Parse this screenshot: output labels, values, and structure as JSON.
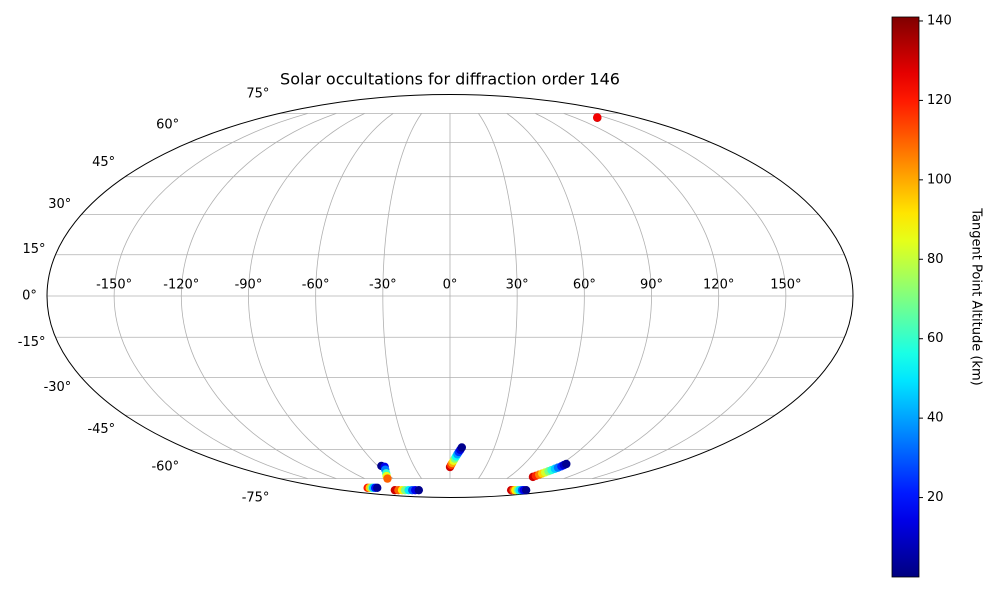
{
  "chart_data": {
    "type": "scatter",
    "projection": "mollweide",
    "title": "Solar occultations for diffraction order 146",
    "x": [
      0,
      0.9,
      1.8,
      2.7,
      3.6,
      4.4,
      5.3,
      6.2,
      7.1,
      8,
      84,
      85,
      86,
      87,
      88,
      89,
      90,
      91,
      92,
      93,
      93.5,
      94,
      102,
      106,
      109,
      113,
      116,
      120,
      123,
      127,
      -92,
      -86,
      -80,
      -75,
      -69,
      -63,
      -58,
      -52,
      -120,
      -117,
      -114,
      -112,
      -109,
      -106,
      -57,
      -55,
      -57,
      -60,
      -63,
      -66,
      141,
      142
    ],
    "y": [
      -68.6,
      -67.5,
      -66.5,
      -65.4,
      -64.3,
      -63.3,
      -62.2,
      -61.1,
      -60.1,
      -59,
      -74,
      -73.4,
      -72.7,
      -72.1,
      -71.5,
      -70.8,
      -70.2,
      -69.5,
      -68.9,
      -68.2,
      -67.6,
      -67,
      -82.6,
      -82.6,
      -82.6,
      -82.6,
      -82.6,
      -82.6,
      -82.6,
      -82.6,
      -82.6,
      -82.6,
      -82.6,
      -82.6,
      -82.6,
      -82.6,
      -82.6,
      -82.6,
      -80.9,
      -80.9,
      -80.9,
      -80.9,
      -80.9,
      -80.9,
      -68,
      -68.5,
      -70,
      -72,
      -73.5,
      -75,
      72.5,
      72.7
    ],
    "color_values": [
      130,
      115,
      100,
      85,
      70,
      55,
      40,
      25,
      12,
      2,
      130,
      118,
      106,
      94,
      82,
      70,
      58,
      46,
      34,
      22,
      10,
      2,
      130,
      110,
      90,
      70,
      50,
      30,
      15,
      2,
      130,
      110,
      90,
      70,
      50,
      30,
      15,
      2,
      120,
      95,
      70,
      45,
      20,
      3,
      2,
      15,
      35,
      60,
      85,
      110,
      135,
      125
    ],
    "xlim": [
      -180,
      180
    ],
    "ylim": [
      -90,
      90
    ],
    "xticks": [
      {
        "value": -150,
        "label": "-150°"
      },
      {
        "value": -120,
        "label": "-120°"
      },
      {
        "value": -90,
        "label": "-90°"
      },
      {
        "value": -60,
        "label": "-60°"
      },
      {
        "value": -30,
        "label": "-30°"
      },
      {
        "value": 0,
        "label": "0°"
      },
      {
        "value": 30,
        "label": "30°"
      },
      {
        "value": 60,
        "label": "60°"
      },
      {
        "value": 90,
        "label": "90°"
      },
      {
        "value": 120,
        "label": "120°"
      },
      {
        "value": 150,
        "label": "150°"
      }
    ],
    "yticks": [
      {
        "value": -75,
        "label": "-75°"
      },
      {
        "value": -60,
        "label": "-60°"
      },
      {
        "value": -45,
        "label": "-45°"
      },
      {
        "value": -30,
        "label": "-30°"
      },
      {
        "value": -15,
        "label": "-15°"
      },
      {
        "value": 0,
        "label": "0°"
      },
      {
        "value": 15,
        "label": "15°"
      },
      {
        "value": 30,
        "label": "30°"
      },
      {
        "value": 45,
        "label": "45°"
      },
      {
        "value": 60,
        "label": "60°"
      },
      {
        "value": 75,
        "label": "75°"
      }
    ],
    "grid": true,
    "colorbar": {
      "label": "Tangent Point Altitude (km)",
      "colormap": "jet",
      "lim": [
        0,
        141
      ],
      "ticks": [
        20,
        40,
        60,
        80,
        100,
        120,
        140
      ]
    }
  }
}
